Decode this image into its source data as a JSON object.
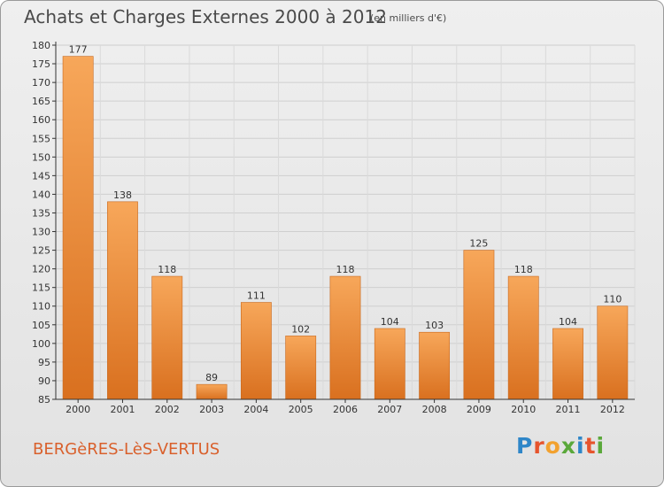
{
  "header": {
    "title": "Achats et Charges Externes 2000 à 2012",
    "unit": "(en milliers d'€)"
  },
  "footer": {
    "place": "BERGèRES-LèS-VERTUS",
    "brand_letters": [
      "P",
      "r",
      "o",
      "x",
      "i",
      "t",
      "i"
    ]
  },
  "colors": {
    "bar_top": "#f7a75a",
    "bar_bottom": "#d9701f",
    "place_text": "#d9602c",
    "grid": "#cfcfcf"
  },
  "chart_data": {
    "type": "bar",
    "title": "Achats et Charges Externes 2000 à 2012",
    "subtitle": "(en milliers d'€)",
    "categories": [
      "2000",
      "2001",
      "2002",
      "2003",
      "2004",
      "2005",
      "2006",
      "2007",
      "2008",
      "2009",
      "2010",
      "2011",
      "2012"
    ],
    "values": [
      177,
      138,
      118,
      89,
      111,
      102,
      118,
      104,
      103,
      125,
      118,
      104,
      110
    ],
    "xlabel": "",
    "ylabel": "",
    "ylim": [
      85,
      180
    ],
    "yticks": [
      85,
      90,
      95,
      100,
      105,
      110,
      115,
      120,
      125,
      130,
      135,
      140,
      145,
      150,
      155,
      160,
      165,
      170,
      175,
      180
    ],
    "grid": true,
    "data_labels": true
  }
}
